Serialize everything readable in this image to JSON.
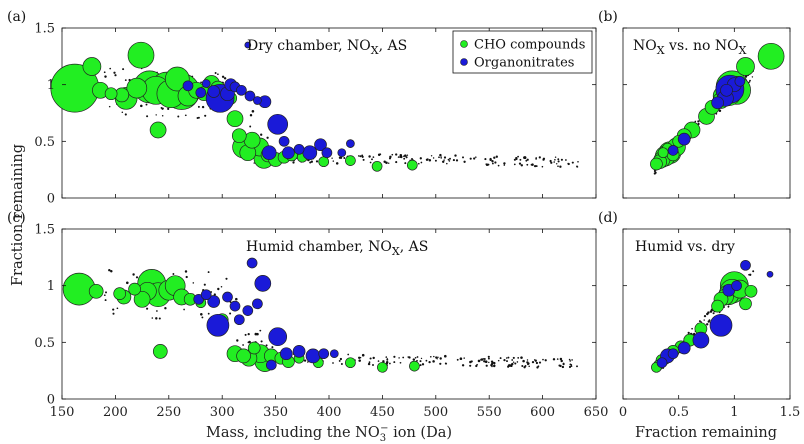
{
  "figure": {
    "xlabel_prefix": "Mass, including the NO",
    "xlabel_sub": "3",
    "xlabel_sup": "−",
    "xlabel_suffix": " ion (Da)",
    "xlabel_right": "Fraction remaining",
    "ylabel": "Fraction remaining",
    "legend": {
      "items": [
        "CHO compounds",
        "Organonitrates"
      ]
    },
    "colors": {
      "cho": "#22ee22",
      "organonitrate": "#1a1ad8",
      "small_points": "#111111",
      "edge": "#222222"
    }
  },
  "chart_data": [
    {
      "type": "scatter",
      "panel_label": "(a)",
      "annotation": {
        "pre": "Dry chamber, NO",
        "sub": "X",
        "post": ", AS"
      },
      "xlim": [
        150,
        650
      ],
      "ylim": [
        0,
        1.5
      ],
      "xticks": [
        150,
        200,
        250,
        300,
        350,
        400,
        450,
        500,
        550,
        600,
        650
      ],
      "yticks": [
        0,
        0.5,
        1,
        1.5
      ],
      "ytick_labels": [
        "0",
        "0.5",
        "1",
        "1.5"
      ],
      "grid": false,
      "legend_position": "top-right",
      "series": [
        {
          "name": "CHO compounds",
          "points": [
            [
              162,
              0.97,
              24
            ],
            [
              178,
              1.16,
              9
            ],
            [
              186,
              0.95,
              8
            ],
            [
              196,
              0.92,
              6
            ],
            [
              206,
              0.91,
              7
            ],
            [
              210,
              0.88,
              11
            ],
            [
              220,
              0.97,
              10
            ],
            [
              224,
              1.26,
              13
            ],
            [
              232,
              0.98,
              16
            ],
            [
              238,
              0.95,
              14
            ],
            [
              240,
              0.6,
              8
            ],
            [
              248,
              0.97,
              16
            ],
            [
              252,
              0.92,
              14
            ],
            [
              258,
              1.05,
              12
            ],
            [
              262,
              0.94,
              18
            ],
            [
              268,
              0.9,
              10
            ],
            [
              276,
              0.95,
              8
            ],
            [
              283,
              0.92,
              7
            ],
            [
              290,
              1.01,
              8
            ],
            [
              296,
              0.97,
              7
            ],
            [
              300,
              0.9,
              9
            ],
            [
              308,
              0.88,
              6
            ],
            [
              312,
              0.7,
              8
            ],
            [
              316,
              0.55,
              7
            ],
            [
              320,
              0.45,
              11
            ],
            [
              324,
              0.4,
              8
            ],
            [
              328,
              0.51,
              8
            ],
            [
              335,
              0.45,
              9
            ],
            [
              339,
              0.35,
              10
            ],
            [
              343,
              0.38,
              7
            ],
            [
              350,
              0.34,
              7
            ],
            [
              358,
              0.36,
              6
            ],
            [
              365,
              0.38,
              6
            ],
            [
              375,
              0.36,
              5
            ],
            [
              395,
              0.32,
              5
            ],
            [
              420,
              0.33,
              5
            ],
            [
              445,
              0.28,
              5
            ],
            [
              478,
              0.29,
              5
            ]
          ]
        },
        {
          "name": "Organonitrates",
          "points": [
            [
              268,
              0.99,
              5
            ],
            [
              280,
              0.93,
              5
            ],
            [
              285,
              1.01,
              4
            ],
            [
              292,
              0.94,
              6
            ],
            [
              298,
              0.88,
              14
            ],
            [
              305,
              0.92,
              7
            ],
            [
              308,
              1.0,
              6
            ],
            [
              312,
              0.98,
              5
            ],
            [
              318,
              0.95,
              5
            ],
            [
              324,
              1.35,
              3
            ],
            [
              326,
              0.9,
              5
            ],
            [
              333,
              0.86,
              4
            ],
            [
              340,
              0.85,
              6
            ],
            [
              344,
              0.4,
              7
            ],
            [
              352,
              0.65,
              10
            ],
            [
              358,
              0.5,
              5
            ],
            [
              362,
              0.4,
              6
            ],
            [
              372,
              0.43,
              5
            ],
            [
              382,
              0.4,
              7
            ],
            [
              392,
              0.47,
              6
            ],
            [
              398,
              0.4,
              5
            ],
            [
              412,
              0.4,
              4
            ],
            [
              420,
              0.48,
              4
            ]
          ]
        }
      ]
    },
    {
      "type": "scatter",
      "panel_label": "(b)",
      "annotation": {
        "pre": "NO",
        "sub": "X",
        "post": " vs. no NO",
        "sub2": "X"
      },
      "xlim": [
        0,
        1.5
      ],
      "ylim": [
        0,
        1.5
      ],
      "series": [
        {
          "name": "CHO compounds",
          "points": [
            [
              1.33,
              1.25,
              13
            ],
            [
              1.1,
              1.16,
              9
            ],
            [
              0.98,
              0.98,
              16
            ],
            [
              1.02,
              0.95,
              14
            ],
            [
              0.95,
              0.92,
              12
            ],
            [
              0.9,
              0.9,
              10
            ],
            [
              0.88,
              0.86,
              8
            ],
            [
              0.8,
              0.8,
              7
            ],
            [
              0.75,
              0.72,
              8
            ],
            [
              0.62,
              0.6,
              8
            ],
            [
              0.55,
              0.55,
              7
            ],
            [
              0.5,
              0.5,
              6
            ],
            [
              0.48,
              0.45,
              9
            ],
            [
              0.42,
              0.4,
              11
            ],
            [
              0.38,
              0.37,
              10
            ],
            [
              0.35,
              0.34,
              8
            ],
            [
              0.33,
              0.32,
              7
            ],
            [
              0.3,
              0.3,
              6
            ],
            [
              0.45,
              0.38,
              6
            ],
            [
              0.4,
              0.44,
              5
            ],
            [
              0.36,
              0.4,
              5
            ]
          ]
        },
        {
          "name": "Organonitrates",
          "points": [
            [
              0.96,
              0.96,
              14
            ],
            [
              0.92,
              0.88,
              8
            ],
            [
              0.85,
              0.84,
              6
            ],
            [
              1.0,
              1.0,
              7
            ],
            [
              0.93,
              0.95,
              6
            ],
            [
              1.05,
              1.03,
              5
            ],
            [
              0.55,
              0.52,
              6
            ],
            [
              0.45,
              0.42,
              5
            ]
          ]
        }
      ]
    },
    {
      "type": "scatter",
      "panel_label": "(c)",
      "annotation": {
        "pre": "Humid chamber, NO",
        "sub": "X",
        "post": ", AS"
      },
      "xlim": [
        150,
        650
      ],
      "ylim": [
        0,
        1.5
      ],
      "xticks": [
        150,
        200,
        250,
        300,
        350,
        400,
        450,
        500,
        550,
        600,
        650
      ],
      "yticks": [
        0,
        0.5,
        1,
        1.5
      ],
      "ytick_labels": [
        "0",
        "0.5",
        "1",
        "1.5"
      ],
      "series": [
        {
          "name": "CHO compounds",
          "points": [
            [
              166,
              0.97,
              16
            ],
            [
              182,
              0.95,
              7
            ],
            [
              204,
              0.93,
              6
            ],
            [
              208,
              0.9,
              7
            ],
            [
              218,
              0.97,
              6
            ],
            [
              225,
              0.88,
              8
            ],
            [
              230,
              0.95,
              9
            ],
            [
              234,
              1.02,
              14
            ],
            [
              240,
              0.92,
              12
            ],
            [
              242,
              0.42,
              7
            ],
            [
              250,
              0.96,
              10
            ],
            [
              256,
              1.0,
              10
            ],
            [
              262,
              0.9,
              8
            ],
            [
              270,
              0.88,
              6
            ],
            [
              280,
              0.85,
              5
            ],
            [
              300,
              0.7,
              6
            ],
            [
              312,
              0.4,
              8
            ],
            [
              320,
              0.38,
              7
            ],
            [
              325,
              0.36,
              8
            ],
            [
              330,
              0.45,
              6
            ],
            [
              336,
              0.4,
              9
            ],
            [
              340,
              0.33,
              10
            ],
            [
              346,
              0.38,
              7
            ],
            [
              355,
              0.36,
              6
            ],
            [
              362,
              0.33,
              6
            ],
            [
              372,
              0.36,
              5
            ],
            [
              390,
              0.32,
              5
            ],
            [
              420,
              0.32,
              5
            ],
            [
              450,
              0.28,
              5
            ],
            [
              480,
              0.29,
              5
            ]
          ]
        },
        {
          "name": "Organonitrates",
          "points": [
            [
              278,
              0.88,
              5
            ],
            [
              285,
              0.92,
              5
            ],
            [
              292,
              0.86,
              6
            ],
            [
              296,
              0.65,
              11
            ],
            [
              305,
              0.9,
              5
            ],
            [
              312,
              0.82,
              5
            ],
            [
              316,
              0.7,
              5
            ],
            [
              324,
              0.78,
              5
            ],
            [
              328,
              1.2,
              5
            ],
            [
              333,
              0.84,
              5
            ],
            [
              338,
              1.02,
              8
            ],
            [
              346,
              0.3,
              5
            ],
            [
              352,
              0.55,
              9
            ],
            [
              360,
              0.4,
              6
            ],
            [
              372,
              0.42,
              6
            ],
            [
              385,
              0.38,
              7
            ],
            [
              395,
              0.4,
              5
            ],
            [
              405,
              0.4,
              4
            ]
          ]
        }
      ]
    },
    {
      "type": "scatter",
      "panel_label": "(d)",
      "annotation": {
        "pre": "Humid vs. dry"
      },
      "xlim": [
        0,
        1.5
      ],
      "ylim": [
        0,
        1.5
      ],
      "xticks": [
        0,
        0.5,
        1,
        1.5
      ],
      "xtick_labels": [
        "0",
        "0.5",
        "1",
        "1.5"
      ],
      "series": [
        {
          "name": "CHO compounds",
          "points": [
            [
              1.0,
              1.0,
              14
            ],
            [
              0.98,
              0.95,
              12
            ],
            [
              0.95,
              0.92,
              10
            ],
            [
              1.05,
              0.97,
              9
            ],
            [
              0.92,
              0.9,
              8
            ],
            [
              0.88,
              0.88,
              7
            ],
            [
              1.15,
              0.95,
              6
            ],
            [
              1.1,
              0.84,
              6
            ],
            [
              0.85,
              0.82,
              6
            ],
            [
              0.7,
              0.62,
              6
            ],
            [
              0.6,
              0.52,
              6
            ],
            [
              0.52,
              0.46,
              6
            ],
            [
              0.45,
              0.42,
              6
            ],
            [
              0.4,
              0.38,
              6
            ],
            [
              0.35,
              0.34,
              6
            ],
            [
              0.32,
              0.3,
              5
            ],
            [
              0.3,
              0.28,
              5
            ],
            [
              0.38,
              0.35,
              5
            ]
          ]
        },
        {
          "name": "Organonitrates",
          "points": [
            [
              0.88,
              0.65,
              11
            ],
            [
              0.7,
              0.52,
              8
            ],
            [
              1.1,
              1.18,
              5
            ],
            [
              0.95,
              0.96,
              6
            ],
            [
              0.55,
              0.45,
              6
            ],
            [
              0.45,
              0.4,
              5
            ],
            [
              0.4,
              0.38,
              7
            ],
            [
              0.35,
              0.32,
              5
            ],
            [
              1.02,
              1.0,
              5
            ],
            [
              1.32,
              1.1,
              3
            ]
          ]
        }
      ]
    }
  ]
}
